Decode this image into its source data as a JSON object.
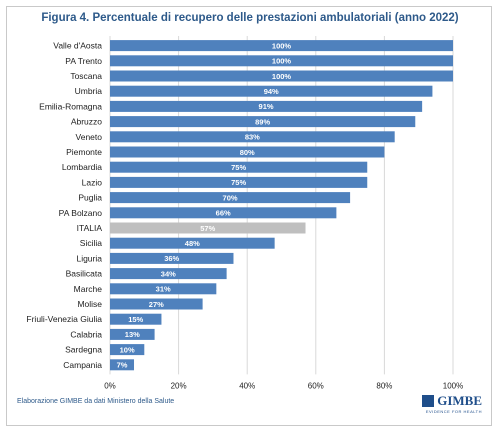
{
  "figure": {
    "title": "Figura 4. Percentuale di recupero delle prestazioni ambulatoriali (anno 2022)",
    "source": "Elaborazione GIMBE da dati Ministero della Salute",
    "logo_name": "GIMBE",
    "logo_tagline": "EVIDENCE FOR HEALTH"
  },
  "colors": {
    "bar": "#4f81bd",
    "highlight": "#bfbfbf",
    "grid": "#d9d9d9",
    "title": "#2e5a8a"
  },
  "chart_data": {
    "type": "bar",
    "orientation": "horizontal",
    "title": "Figura 4. Percentuale di recupero delle prestazioni ambulatoriali (anno 2022)",
    "categories": [
      "Valle d'Aosta",
      "PA Trento",
      "Toscana",
      "Umbria",
      "Emilia-Romagna",
      "Abruzzo",
      "Veneto",
      "Piemonte",
      "Lombardia",
      "Lazio",
      "Puglia",
      "PA Bolzano",
      "ITALIA",
      "Sicilia",
      "Liguria",
      "Basilicata",
      "Marche",
      "Molise",
      "Friuli-Venezia Giulia",
      "Calabria",
      "Sardegna",
      "Campania"
    ],
    "values": [
      100,
      100,
      100,
      94,
      91,
      89,
      83,
      80,
      75,
      75,
      70,
      66,
      57,
      48,
      36,
      34,
      31,
      27,
      15,
      13,
      10,
      7
    ],
    "value_labels": [
      "100%",
      "100%",
      "100%",
      "94%",
      "91%",
      "89%",
      "83%",
      "80%",
      "75%",
      "75%",
      "70%",
      "66%",
      "57%",
      "48%",
      "36%",
      "34%",
      "31%",
      "27%",
      "15%",
      "13%",
      "10%",
      "7%"
    ],
    "highlight_category": "ITALIA",
    "xlim": [
      0,
      100
    ],
    "x_ticks": [
      0,
      20,
      40,
      60,
      80,
      100
    ],
    "x_tick_labels": [
      "0%",
      "20%",
      "40%",
      "60%",
      "80%",
      "100%"
    ],
    "grid": "vertical",
    "legend": "none"
  }
}
